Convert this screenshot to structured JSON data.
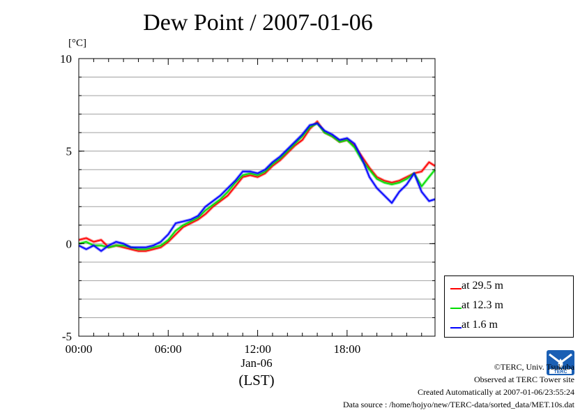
{
  "title": "Dew Point / 2007-01-06",
  "unit_label": "[°C]",
  "x_date_label": "Jan-06",
  "x_zone_label": "(LST)",
  "footer": {
    "copyright": "©TERC, Univ. Tsukuba",
    "observed": "Observed at TERC Tower site",
    "created": "Created Automatically at 2007-01-06/23:55:24",
    "source": "Data source : /home/hojyo/new/TERC-data/sorted_data/MET.10s.dat"
  },
  "logo": {
    "icon": "terc-logo-icon",
    "text": "TERC",
    "color": "#1a5fb4"
  },
  "chart_data": {
    "type": "line",
    "title": "Dew Point / 2007-01-06",
    "xlabel": "Jan-06 (LST)",
    "ylabel": "[°C]",
    "xlim": [
      0,
      23.9
    ],
    "ylim": [
      -5,
      10
    ],
    "x_ticks": [
      0,
      6,
      12,
      18
    ],
    "x_tick_labels": [
      "00:00",
      "06:00",
      "12:00",
      "18:00"
    ],
    "y_ticks": [
      -5,
      0,
      5,
      10
    ],
    "y_tick_labels": [
      "-5",
      "0",
      "5",
      "10"
    ],
    "grid": true,
    "legend": "bottom-right outside",
    "x": [
      0,
      0.5,
      1,
      1.5,
      2,
      2.5,
      3,
      3.5,
      4,
      4.5,
      5,
      5.5,
      6,
      6.5,
      7,
      7.5,
      8,
      8.5,
      9,
      9.5,
      10,
      10.5,
      11,
      11.5,
      12,
      12.5,
      13,
      13.5,
      14,
      14.5,
      15,
      15.5,
      16,
      16.5,
      17,
      17.5,
      18,
      18.5,
      19,
      19.5,
      20,
      20.5,
      21,
      21.5,
      22,
      22.5,
      23,
      23.5,
      23.9
    ],
    "series": [
      {
        "name": "at 29.5 m",
        "color": "#ff0000",
        "values": [
          0.2,
          0.3,
          0.1,
          0.2,
          -0.2,
          -0.1,
          -0.2,
          -0.3,
          -0.4,
          -0.4,
          -0.3,
          -0.2,
          0.1,
          0.5,
          0.9,
          1.1,
          1.3,
          1.6,
          2.0,
          2.3,
          2.6,
          3.1,
          3.6,
          3.7,
          3.6,
          3.8,
          4.2,
          4.5,
          4.9,
          5.3,
          5.6,
          6.2,
          6.6,
          6.0,
          5.8,
          5.5,
          5.6,
          5.3,
          4.7,
          4.1,
          3.6,
          3.4,
          3.3,
          3.4,
          3.6,
          3.8,
          3.9,
          4.4,
          4.2
        ]
      },
      {
        "name": "at 12.3 m",
        "color": "#00dd00",
        "values": [
          0.0,
          0.1,
          -0.1,
          -0.1,
          -0.2,
          -0.1,
          -0.1,
          -0.2,
          -0.3,
          -0.3,
          -0.2,
          -0.1,
          0.2,
          0.7,
          1.0,
          1.2,
          1.4,
          1.8,
          2.1,
          2.4,
          2.8,
          3.3,
          3.7,
          3.8,
          3.7,
          3.9,
          4.3,
          4.6,
          5.0,
          5.4,
          5.8,
          6.3,
          6.5,
          6.0,
          5.8,
          5.5,
          5.6,
          5.2,
          4.5,
          4.0,
          3.5,
          3.3,
          3.2,
          3.3,
          3.5,
          3.8,
          3.1,
          3.6,
          4.0
        ]
      },
      {
        "name": "at 1.6 m",
        "color": "#0000ff",
        "values": [
          -0.1,
          -0.3,
          -0.1,
          -0.4,
          -0.1,
          0.1,
          0.0,
          -0.2,
          -0.2,
          -0.2,
          -0.1,
          0.1,
          0.5,
          1.1,
          1.2,
          1.3,
          1.5,
          2.0,
          2.3,
          2.6,
          3.0,
          3.4,
          3.9,
          3.9,
          3.8,
          4.0,
          4.4,
          4.7,
          5.1,
          5.5,
          5.9,
          6.4,
          6.5,
          6.1,
          5.9,
          5.6,
          5.7,
          5.4,
          4.6,
          3.6,
          3.0,
          2.6,
          2.2,
          2.8,
          3.2,
          3.8,
          2.8,
          2.3,
          2.4
        ]
      }
    ]
  }
}
